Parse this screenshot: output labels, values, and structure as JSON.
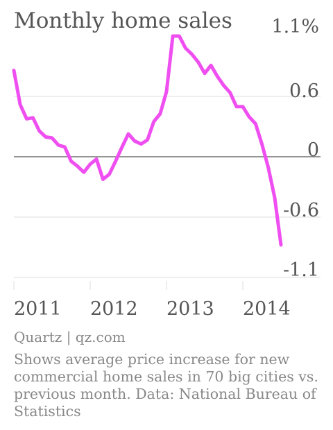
{
  "title": "Monthly home sales",
  "source": "Quartz | qz.com",
  "note": "Shows average price increase for new commercial home sales in 70 big cities vs. previous month. Data: National Bureau of Statistics",
  "colors": {
    "line": "#ef4ff0",
    "grid": "#dddddd",
    "zero": "#555555",
    "text": "#555555",
    "muted": "#888888"
  },
  "chart_data": {
    "type": "line",
    "title": "Monthly home sales",
    "xlabel": "",
    "ylabel": "",
    "ylim": [
      -1.1,
      1.1
    ],
    "yticks": [
      "1.1%",
      "0.6",
      "0",
      "-0.6",
      "-1.1"
    ],
    "ytick_values": [
      1.1,
      0.6,
      0,
      -0.6,
      -1.1
    ],
    "xticks": [
      "2011",
      "2012",
      "2013",
      "2014"
    ],
    "xtick_values": [
      2011,
      2012,
      2013,
      2014
    ],
    "grid": true,
    "series": [
      {
        "x": [
          2011.0,
          2011.083,
          2011.167,
          2011.25,
          2011.333,
          2011.417,
          2011.5,
          2011.583,
          2011.667,
          2011.75,
          2011.833,
          2011.917,
          2012.0,
          2012.083,
          2012.167,
          2012.25,
          2012.333,
          2012.417,
          2012.5,
          2012.583,
          2012.667,
          2012.75,
          2012.833,
          2012.917,
          2013.0,
          2013.083,
          2013.167,
          2013.25,
          2013.333,
          2013.417,
          2013.5,
          2013.583,
          2013.667,
          2013.75,
          2013.833,
          2013.917,
          2014.0,
          2014.083,
          2014.167,
          2014.25,
          2014.333,
          2014.417,
          2014.5
        ],
        "values": [
          0.76,
          0.42,
          0.28,
          0.29,
          0.16,
          0.1,
          0.09,
          0.02,
          0.0,
          -0.14,
          -0.19,
          -0.25,
          -0.17,
          -0.12,
          -0.32,
          -0.27,
          -0.14,
          0.0,
          0.13,
          0.06,
          0.03,
          0.07,
          0.25,
          0.33,
          0.55,
          1.1,
          1.1,
          0.98,
          0.92,
          0.84,
          0.73,
          0.81,
          0.7,
          0.61,
          0.54,
          0.4,
          0.4,
          0.3,
          0.23,
          0.03,
          -0.2,
          -0.5,
          -0.97
        ]
      }
    ]
  }
}
